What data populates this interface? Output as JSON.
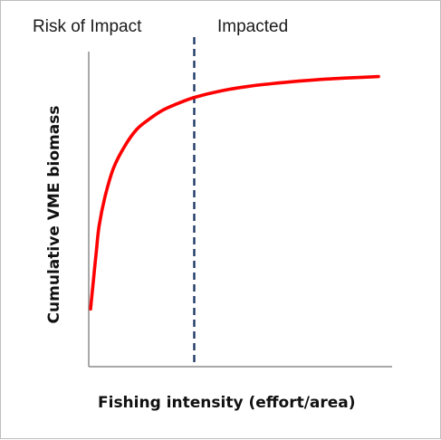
{
  "chart_data": {
    "type": "line",
    "title": "",
    "xlabel": "Fishing intensity (effort/area)",
    "ylabel": "Cumulative VME biomass",
    "xlim": [
      0,
      100
    ],
    "ylim": [
      0,
      100
    ],
    "regions": [
      {
        "label": "Risk of Impact",
        "x_from": 0,
        "x_to": 36
      },
      {
        "label": "Impacted",
        "x_from": 36,
        "x_to": 100
      }
    ],
    "threshold": {
      "x": 36,
      "style": "dashed",
      "color": "#1f3864"
    },
    "series": [
      {
        "color": "#ff0000",
        "x": [
          0,
          1,
          2,
          3,
          5,
          8,
          12,
          16,
          20,
          25,
          30,
          36,
          45,
          55,
          65,
          75,
          85,
          95,
          100
        ],
        "y": [
          18,
          27,
          36,
          44,
          53,
          62,
          69,
          74,
          77,
          80,
          82,
          84,
          86,
          87.5,
          88.5,
          89.3,
          89.9,
          90.3,
          90.5
        ]
      }
    ],
    "grid": false,
    "legend": "none"
  }
}
